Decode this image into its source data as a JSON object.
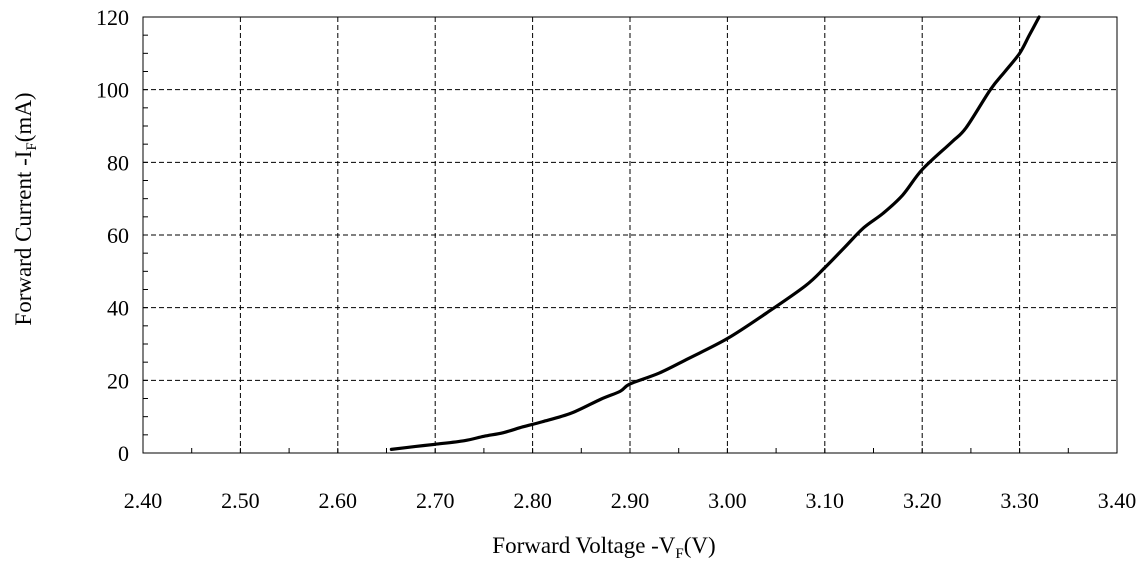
{
  "chart_data": {
    "type": "line",
    "xlabel": {
      "main": "Forward Voltage -V",
      "sub": "F",
      "unit": "(V)"
    },
    "ylabel": {
      "main": "Forward Current -I",
      "sub": "F",
      "unit": "(mA)"
    },
    "xlim": [
      2.4,
      3.4
    ],
    "ylim": [
      0,
      120
    ],
    "x_ticks": [
      "2.40",
      "2.50",
      "2.60",
      "2.70",
      "2.80",
      "2.90",
      "3.00",
      "3.10",
      "3.20",
      "3.30",
      "3.40"
    ],
    "y_ticks": [
      "0",
      "20",
      "40",
      "60",
      "80",
      "100",
      "120"
    ],
    "grid": true,
    "series": [
      {
        "color": "#000000",
        "points": [
          [
            2.655,
            1
          ],
          [
            2.68,
            1.8
          ],
          [
            2.7,
            2.4
          ],
          [
            2.73,
            3.4
          ],
          [
            2.75,
            4.6
          ],
          [
            2.77,
            5.6
          ],
          [
            2.79,
            7.2
          ],
          [
            2.81,
            8.6
          ],
          [
            2.84,
            11
          ],
          [
            2.87,
            14.8
          ],
          [
            2.89,
            17
          ],
          [
            2.9,
            19
          ],
          [
            2.93,
            22
          ],
          [
            2.96,
            26
          ],
          [
            3.0,
            31.5
          ],
          [
            3.04,
            38.5
          ],
          [
            3.08,
            46
          ],
          [
            3.1,
            51
          ],
          [
            3.12,
            56.5
          ],
          [
            3.14,
            62
          ],
          [
            3.16,
            66
          ],
          [
            3.18,
            71
          ],
          [
            3.2,
            78
          ],
          [
            3.23,
            85.5
          ],
          [
            3.245,
            89.5
          ],
          [
            3.27,
            100
          ],
          [
            3.285,
            105
          ],
          [
            3.3,
            110
          ],
          [
            3.31,
            115
          ],
          [
            3.32,
            120
          ]
        ]
      }
    ]
  }
}
